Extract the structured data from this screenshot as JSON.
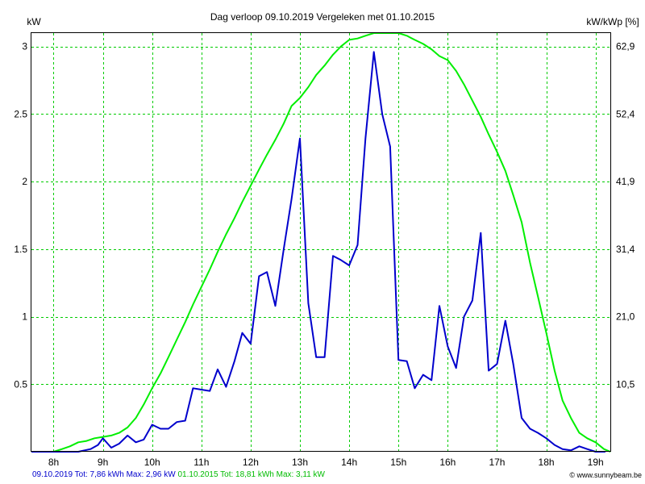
{
  "chart_data": {
    "type": "line",
    "title": "Dag  verloop 09.10.2019   Vergeleken met 01.10.2015",
    "ylabel": "kW",
    "y2label": "kW/kWp [%]",
    "ylim": [
      0,
      3.1
    ],
    "xlim": [
      7.55,
      19.3
    ],
    "grid": true,
    "x_ticks": [
      {
        "v": 8,
        "label": "8h"
      },
      {
        "v": 9,
        "label": "9h"
      },
      {
        "v": 10,
        "label": "10h"
      },
      {
        "v": 11,
        "label": "11h"
      },
      {
        "v": 12,
        "label": "12h"
      },
      {
        "v": 13,
        "label": "13h"
      },
      {
        "v": 14,
        "label": "14h"
      },
      {
        "v": 15,
        "label": "15h"
      },
      {
        "v": 16,
        "label": "16h"
      },
      {
        "v": 17,
        "label": "17h"
      },
      {
        "v": 18,
        "label": "18h"
      },
      {
        "v": 19,
        "label": "19h"
      }
    ],
    "y_ticks": [
      {
        "v": 0.5,
        "label": "0.5"
      },
      {
        "v": 1,
        "label": "1"
      },
      {
        "v": 1.5,
        "label": "1.5"
      },
      {
        "v": 2,
        "label": "2"
      },
      {
        "v": 2.5,
        "label": "2.5"
      },
      {
        "v": 3,
        "label": "3"
      }
    ],
    "y2_ticks": [
      {
        "v": 0.5,
        "label": "10,5"
      },
      {
        "v": 1,
        "label": "21,0"
      },
      {
        "v": 1.5,
        "label": "31,4"
      },
      {
        "v": 2,
        "label": "41,9"
      },
      {
        "v": 2.5,
        "label": "52,4"
      },
      {
        "v": 3,
        "label": "62,9"
      }
    ],
    "series": [
      {
        "name": "09.10.2019",
        "color": "#0000cc",
        "x": [
          7.55,
          8.0,
          8.5,
          8.75,
          8.9,
          9.0,
          9.17,
          9.33,
          9.5,
          9.67,
          9.83,
          10.0,
          10.17,
          10.33,
          10.5,
          10.67,
          10.83,
          11.0,
          11.17,
          11.33,
          11.5,
          11.67,
          11.83,
          12.0,
          12.17,
          12.33,
          12.5,
          12.67,
          12.83,
          13.0,
          13.17,
          13.33,
          13.5,
          13.67,
          13.83,
          14.0,
          14.17,
          14.33,
          14.5,
          14.67,
          14.83,
          15.0,
          15.17,
          15.33,
          15.5,
          15.67,
          15.83,
          16.0,
          16.17,
          16.33,
          16.5,
          16.67,
          16.83,
          17.0,
          17.17,
          17.33,
          17.5,
          17.67,
          17.83,
          18.0,
          18.17,
          18.33,
          18.5,
          18.67,
          18.83,
          19.0,
          19.2
        ],
        "y": [
          0,
          0,
          0,
          0.02,
          0.05,
          0.1,
          0.03,
          0.06,
          0.12,
          0.07,
          0.09,
          0.2,
          0.17,
          0.17,
          0.22,
          0.23,
          0.47,
          0.46,
          0.45,
          0.61,
          0.48,
          0.67,
          0.88,
          0.8,
          1.3,
          1.33,
          1.08,
          1.5,
          1.87,
          2.32,
          1.1,
          0.7,
          0.7,
          1.45,
          1.42,
          1.38,
          1.53,
          2.32,
          2.96,
          2.5,
          2.26,
          0.68,
          0.67,
          0.47,
          0.57,
          0.53,
          1.08,
          0.78,
          0.62,
          1.0,
          1.12,
          1.62,
          0.6,
          0.65,
          0.97,
          0.65,
          0.25,
          0.17,
          0.14,
          0.1,
          0.05,
          0.02,
          0.01,
          0.04,
          0.02,
          0,
          0
        ]
      },
      {
        "name": "01.10.2015",
        "color": "#00ee00",
        "x": [
          7.55,
          8.0,
          8.17,
          8.33,
          8.5,
          8.67,
          8.83,
          9.0,
          9.17,
          9.33,
          9.5,
          9.67,
          9.83,
          10.0,
          10.17,
          10.33,
          10.5,
          10.67,
          10.83,
          11.0,
          11.17,
          11.33,
          11.5,
          11.67,
          11.83,
          12.0,
          12.17,
          12.33,
          12.5,
          12.67,
          12.83,
          13.0,
          13.17,
          13.33,
          13.5,
          13.67,
          13.83,
          14.0,
          14.17,
          14.33,
          14.5,
          14.67,
          14.83,
          15.0,
          15.17,
          15.33,
          15.5,
          15.67,
          15.83,
          16.0,
          16.17,
          16.33,
          16.5,
          16.67,
          16.83,
          17.0,
          17.17,
          17.33,
          17.5,
          17.67,
          17.83,
          18.0,
          18.17,
          18.33,
          18.5,
          18.67,
          18.83,
          19.0,
          19.17,
          19.3
        ],
        "y": [
          0,
          0,
          0.02,
          0.04,
          0.07,
          0.08,
          0.1,
          0.11,
          0.12,
          0.14,
          0.18,
          0.25,
          0.35,
          0.47,
          0.58,
          0.7,
          0.83,
          0.96,
          1.09,
          1.22,
          1.35,
          1.48,
          1.61,
          1.73,
          1.85,
          1.97,
          2.09,
          2.2,
          2.31,
          2.43,
          2.56,
          2.62,
          2.7,
          2.79,
          2.86,
          2.94,
          3.0,
          3.05,
          3.06,
          3.08,
          3.1,
          3.1,
          3.1,
          3.1,
          3.08,
          3.05,
          3.02,
          2.98,
          2.93,
          2.9,
          2.82,
          2.72,
          2.6,
          2.48,
          2.35,
          2.22,
          2.08,
          1.9,
          1.7,
          1.4,
          1.15,
          0.88,
          0.6,
          0.38,
          0.25,
          0.14,
          0.1,
          0.07,
          0.02,
          0
        ]
      }
    ]
  },
  "footer": {
    "series1_summary": "09.10.2019 Tot: 7,86 kWh Max: 2,96 kW",
    "series2_summary": "01.10.2015 Tot: 18,81 kWh Max: 3,11 kW",
    "credit": "© www.sunnybeam.be"
  }
}
